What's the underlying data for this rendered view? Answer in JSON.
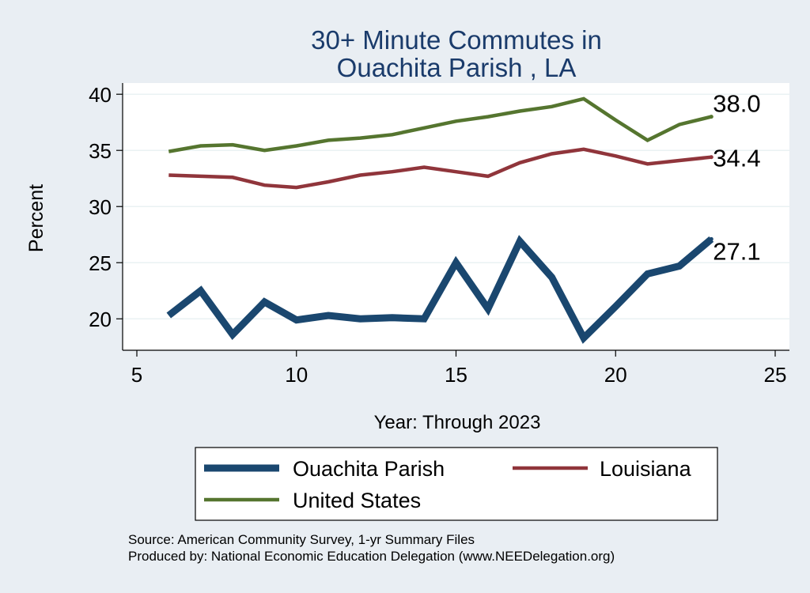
{
  "chart_data": {
    "type": "line",
    "title": [
      "30+ Minute Commutes in",
      "Ouachita Parish , LA"
    ],
    "xlabel": "Year: Through 2023",
    "ylabel": "Percent",
    "xlim": [
      5,
      25
    ],
    "ylim": [
      17.2,
      41
    ],
    "xticks": [
      5,
      10,
      15,
      20,
      25
    ],
    "yticks": [
      20,
      25,
      30,
      35,
      40
    ],
    "xtick_labels": [
      "5",
      "10",
      "15",
      "20",
      "25"
    ],
    "ytick_labels": [
      "20",
      "25",
      "30",
      "35",
      "40"
    ],
    "grid": "horizontal",
    "legend_position": "bottom",
    "series": [
      {
        "name": "Ouachita Parish",
        "color": "#1a476f",
        "weight": "thick",
        "x": [
          6,
          7,
          8,
          9,
          10,
          11,
          12,
          13,
          14,
          15,
          16,
          17,
          18,
          19,
          20,
          21,
          22,
          23
        ],
        "values": [
          20.3,
          22.5,
          18.6,
          21.5,
          19.9,
          20.3,
          20.0,
          20.1,
          20.0,
          25.0,
          20.9,
          26.9,
          23.7,
          18.3,
          21.1,
          24.0,
          24.7,
          27.1
        ],
        "end_label": "27.1"
      },
      {
        "name": "Louisiana",
        "color": "#90353b",
        "weight": "medium",
        "x": [
          6,
          7,
          8,
          9,
          10,
          11,
          12,
          13,
          14,
          15,
          16,
          17,
          18,
          19,
          20,
          21,
          22,
          23
        ],
        "values": [
          32.8,
          32.7,
          32.6,
          31.9,
          31.7,
          32.2,
          32.8,
          33.1,
          33.5,
          33.1,
          32.7,
          33.9,
          34.7,
          35.1,
          34.5,
          33.8,
          34.1,
          34.4
        ],
        "end_label": "34.4"
      },
      {
        "name": "United States",
        "color": "#55752f",
        "weight": "medium",
        "x": [
          6,
          7,
          8,
          9,
          10,
          11,
          12,
          13,
          14,
          15,
          16,
          17,
          18,
          19,
          20,
          21,
          22,
          23
        ],
        "values": [
          34.9,
          35.4,
          35.5,
          35.0,
          35.4,
          35.9,
          36.1,
          36.4,
          37.0,
          37.6,
          38.0,
          38.5,
          38.9,
          39.6,
          37.7,
          35.9,
          37.3,
          38.0
        ],
        "end_label": "38.0"
      }
    ],
    "notes": [
      "Source: American Community Survey, 1-yr Summary Files",
      "Produced by: National Economic Education Delegation (www.NEEDelegation.org)"
    ]
  }
}
